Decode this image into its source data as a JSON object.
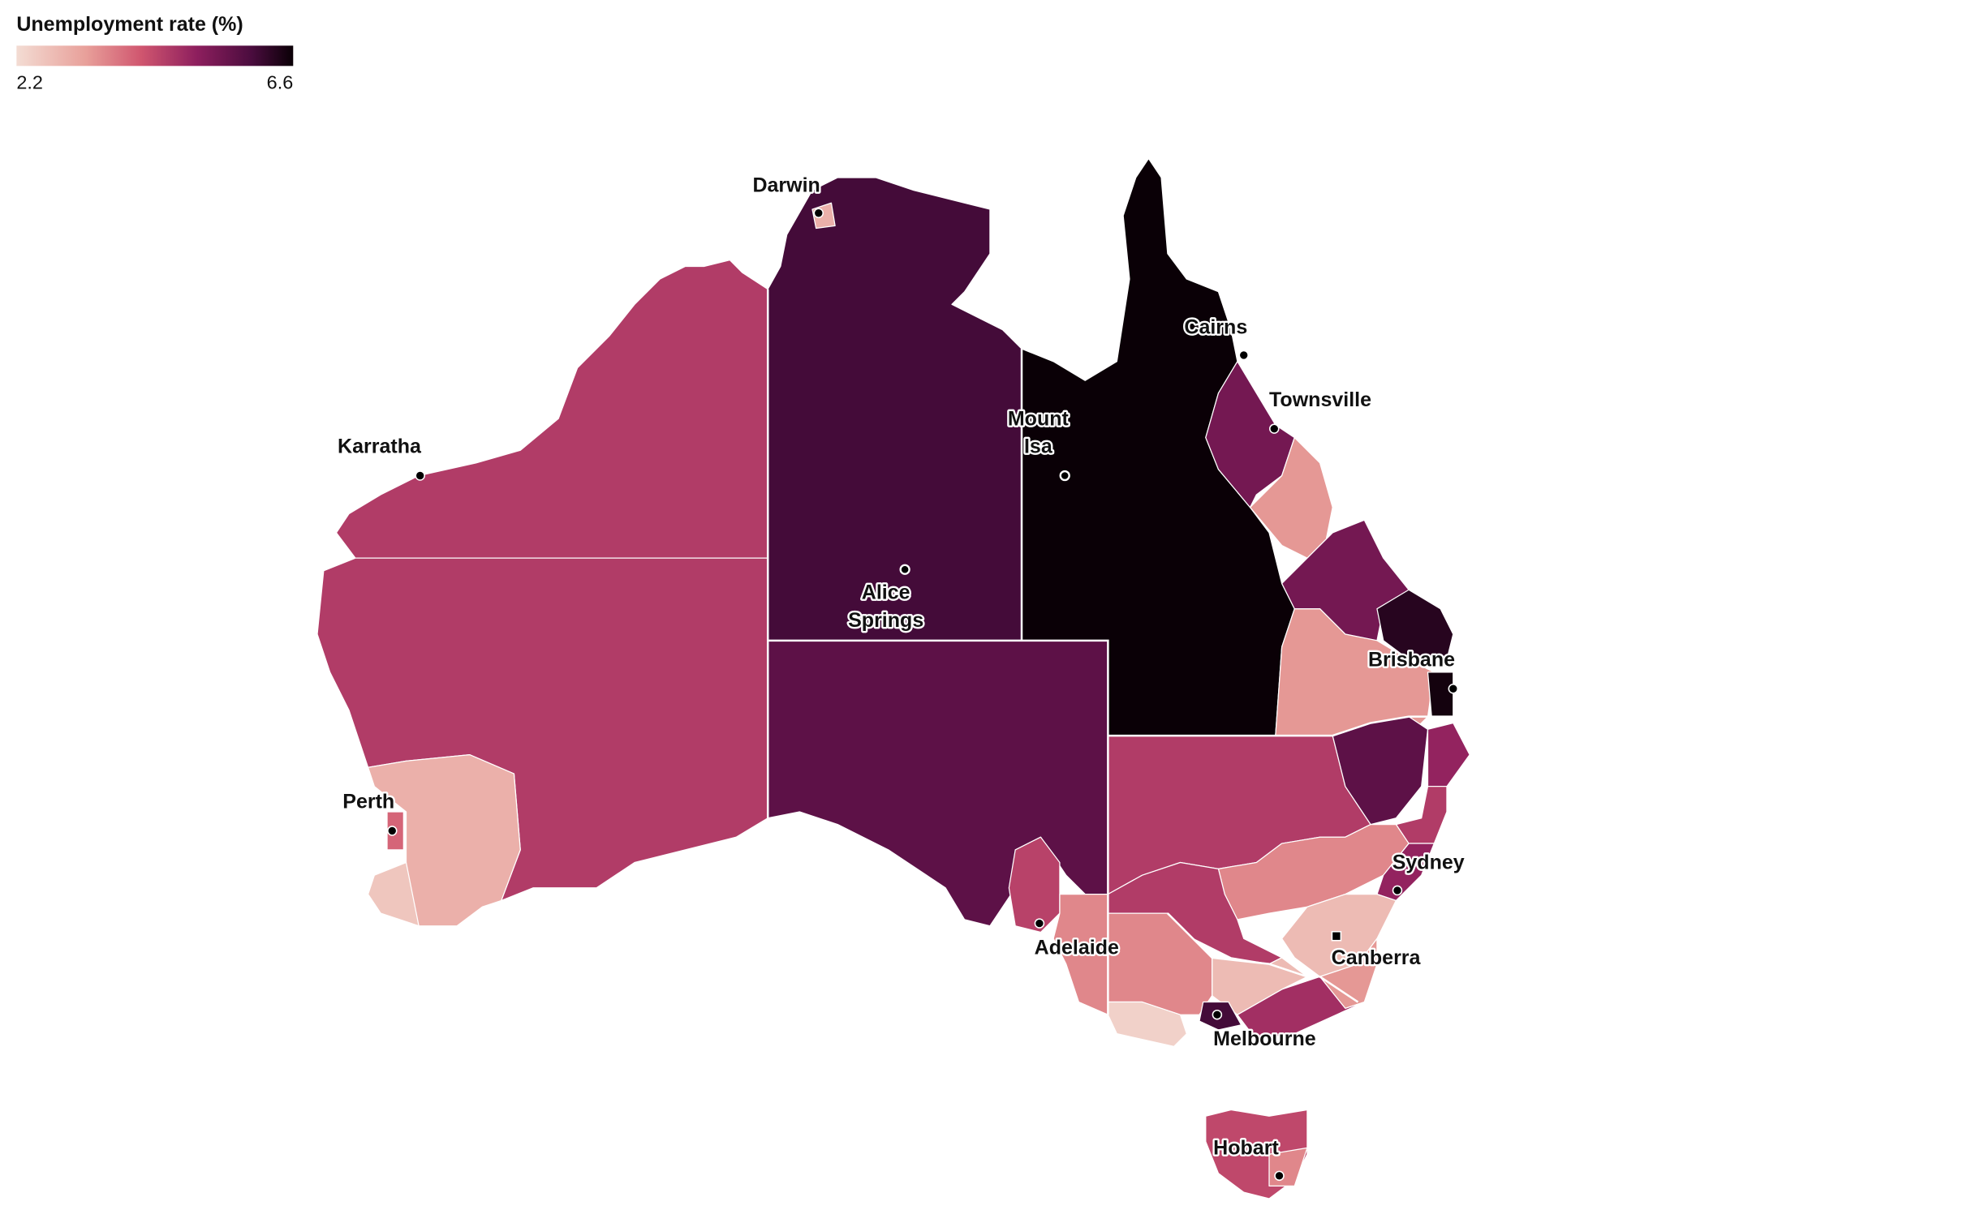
{
  "legend": {
    "title": "Unemployment rate (%)",
    "min": 2.2,
    "max": 6.6
  },
  "map": {
    "regions": [
      4.6,
      4.6,
      3.0,
      2.6,
      4.0,
      6.0,
      3.0,
      5.7,
      4.5,
      3.6,
      6.6,
      5.4,
      3.4,
      5.4,
      3.4,
      6.3,
      6.5,
      4.6,
      5.7,
      5.0,
      4.6,
      3.6,
      5.0,
      4.6,
      2.8,
      3.4,
      4.8,
      2.8,
      3.6,
      2.4,
      6.0,
      4.4,
      3.6
    ]
  },
  "cities": [
    {
      "lines": [
        "Darwin"
      ]
    },
    {
      "lines": [
        "Karratha"
      ]
    },
    {
      "lines": [
        "Perth"
      ]
    },
    {
      "lines": [
        "Alice",
        "Springs"
      ]
    },
    {
      "lines": [
        "Mount",
        "Isa"
      ]
    },
    {
      "lines": [
        "Cairns"
      ]
    },
    {
      "lines": [
        "Townsville"
      ]
    },
    {
      "lines": [
        "Brisbane"
      ]
    },
    {
      "lines": [
        "Sydney"
      ]
    },
    {
      "lines": [
        "Canberra"
      ]
    },
    {
      "lines": [
        "Adelaide"
      ]
    },
    {
      "lines": [
        "Melbourne"
      ]
    },
    {
      "lines": [
        "Hobart"
      ]
    }
  ]
}
